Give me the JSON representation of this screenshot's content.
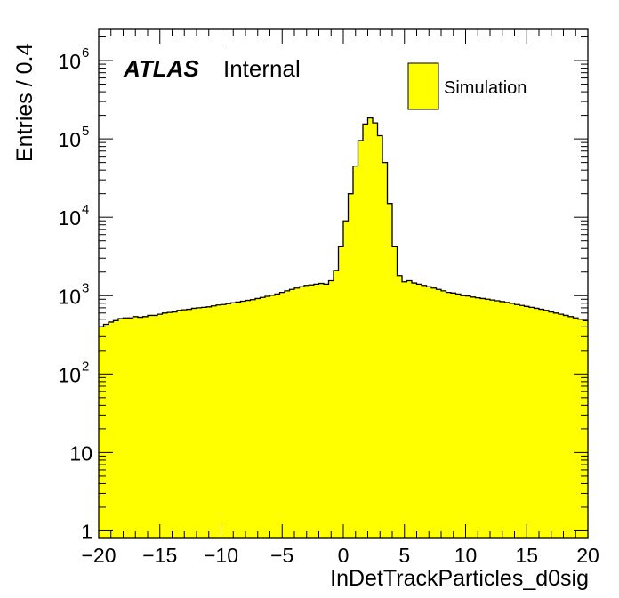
{
  "chart_data": {
    "type": "bar",
    "title": "",
    "xlabel": "InDetTrackParticles_d0sig",
    "ylabel": "Entries / 0.4",
    "xlim": [
      -20,
      20
    ],
    "ylim": [
      0.8,
      2500000
    ],
    "yscale": "log",
    "bin_width": 0.4,
    "x_ticks": [
      {
        "value": -20,
        "label": "−20"
      },
      {
        "value": -15,
        "label": "−15"
      },
      {
        "value": -10,
        "label": "−10"
      },
      {
        "value": -5,
        "label": "−5"
      },
      {
        "value": 0,
        "label": "0"
      },
      {
        "value": 5,
        "label": "5"
      },
      {
        "value": 10,
        "label": "10"
      },
      {
        "value": 15,
        "label": "15"
      },
      {
        "value": 20,
        "label": "20"
      }
    ],
    "y_ticks": [
      {
        "value": 1,
        "base": "1",
        "exp": ""
      },
      {
        "value": 10,
        "base": "10",
        "exp": ""
      },
      {
        "value": 100,
        "base": "10",
        "exp": "2"
      },
      {
        "value": 1000,
        "base": "10",
        "exp": "3"
      },
      {
        "value": 10000,
        "base": "10",
        "exp": "4"
      },
      {
        "value": 100000,
        "base": "10",
        "exp": "5"
      },
      {
        "value": 1000000,
        "base": "10",
        "exp": "6"
      }
    ],
    "atlas_label": "ATLAS",
    "atlas_status": "Internal",
    "legend_position": "top-right",
    "grid": false,
    "series": [
      {
        "name": "Simulation",
        "color": "#ffff00",
        "edge_color": "#000000",
        "bin_start": -20,
        "values": [
          400,
          430,
          460,
          480,
          510,
          520,
          520,
          540,
          530,
          540,
          560,
          560,
          580,
          600,
          610,
          620,
          650,
          660,
          670,
          690,
          700,
          710,
          720,
          740,
          760,
          770,
          790,
          810,
          830,
          850,
          870,
          890,
          920,
          950,
          980,
          1010,
          1050,
          1100,
          1150,
          1200,
          1250,
          1300,
          1350,
          1370,
          1400,
          1430,
          1400,
          1550,
          2100,
          4200,
          9000,
          20000,
          45000,
          95000,
          155000,
          185000,
          160000,
          110000,
          50000,
          15000,
          4200,
          1800,
          1500,
          1550,
          1450,
          1400,
          1350,
          1300,
          1250,
          1200,
          1150,
          1100,
          1080,
          1050,
          1000,
          990,
          960,
          940,
          920,
          900,
          880,
          860,
          840,
          820,
          800,
          770,
          750,
          730,
          710,
          690,
          670,
          650,
          620,
          600,
          580,
          560,
          540,
          520,
          500,
          480
        ]
      }
    ]
  }
}
